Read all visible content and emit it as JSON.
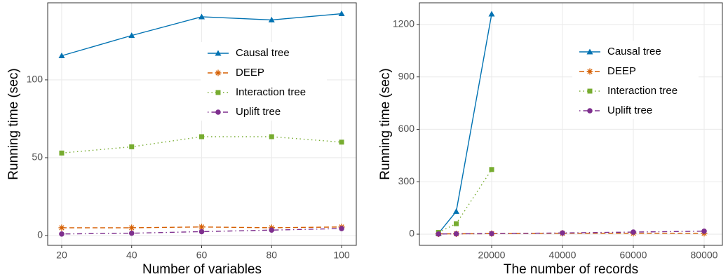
{
  "chart_data": [
    {
      "type": "line",
      "x_label": "Number of variables",
      "y_label": "Running time (sec)",
      "x": [
        20,
        40,
        60,
        80,
        100
      ],
      "xlim": [
        16,
        104.2
      ],
      "xticks": [
        20,
        40,
        60,
        80,
        100
      ],
      "ylim": [
        -6.3,
        149.5
      ],
      "yticks": [
        0,
        50,
        100
      ],
      "grid": true,
      "series": [
        {
          "name": "Causal tree",
          "color": "#0072b2",
          "dash": "solid",
          "marker": "triangle",
          "values": [
            115.5,
            128.5,
            140.5,
            138.5,
            142.5
          ]
        },
        {
          "name": "DEEP",
          "color": "#d55e00",
          "dash": "dashed",
          "marker": "asterisk",
          "values": [
            5,
            5,
            5.5,
            5,
            5.5
          ]
        },
        {
          "name": "Interaction tree",
          "color": "#77ac30",
          "dash": "dotted",
          "marker": "square",
          "values": [
            53,
            57,
            63.5,
            63.5,
            60
          ]
        },
        {
          "name": "Uplift tree",
          "color": "#7e2f8e",
          "dash": "dotdash",
          "marker": "circle",
          "values": [
            1,
            1.5,
            2.5,
            3.5,
            4.5
          ]
        }
      ]
    },
    {
      "type": "line",
      "x_label": "The number of records",
      "y_label": "Running time (sec)",
      "x": [
        5000,
        10000,
        20000,
        40000,
        60000,
        80000
      ],
      "xlim": [
        -400,
        85150
      ],
      "xticks": [
        20000,
        40000,
        60000,
        80000
      ],
      "ylim": [
        -64,
        1324
      ],
      "yticks": [
        0,
        300,
        600,
        900,
        1200
      ],
      "grid": true,
      "series": [
        {
          "name": "Causal tree",
          "color": "#0072b2",
          "dash": "solid",
          "marker": "triangle",
          "values": [
            5,
            130,
            1260,
            null,
            null,
            null
          ]
        },
        {
          "name": "DEEP",
          "color": "#d55e00",
          "dash": "dashed",
          "marker": "asterisk",
          "values": [
            2,
            2,
            3,
            5,
            5,
            5
          ]
        },
        {
          "name": "Interaction tree",
          "color": "#77ac30",
          "dash": "dotted",
          "marker": "square",
          "values": [
            10,
            60,
            370,
            null,
            null,
            null
          ]
        },
        {
          "name": "Uplift tree",
          "color": "#7e2f8e",
          "dash": "dotdash",
          "marker": "circle",
          "values": [
            1,
            2,
            3,
            7,
            12,
            17
          ]
        }
      ]
    }
  ]
}
